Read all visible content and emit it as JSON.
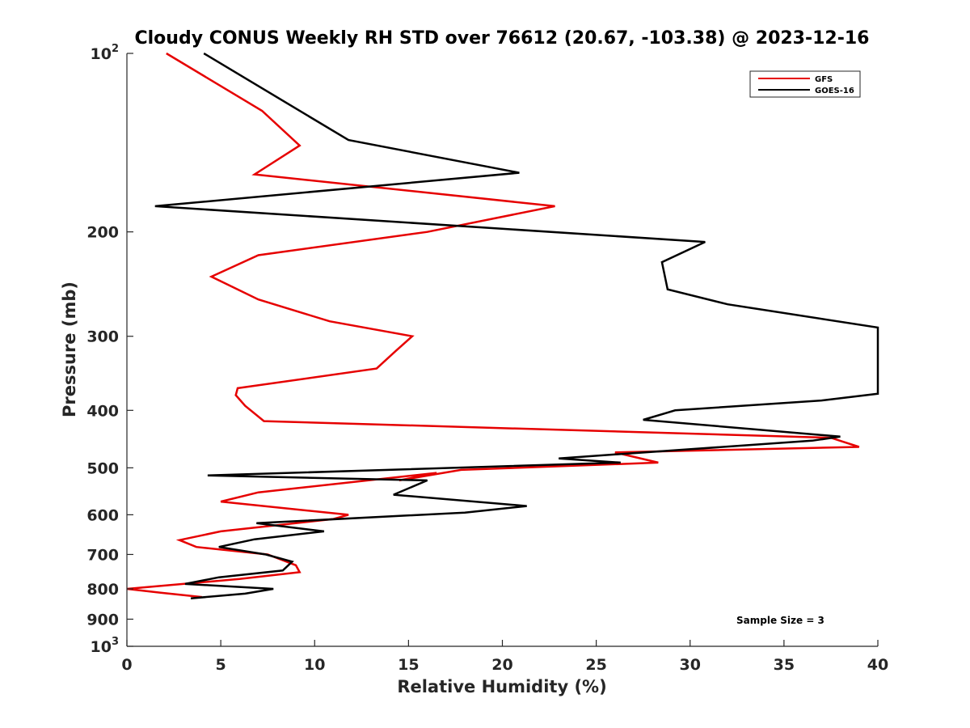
{
  "chart_data": {
    "type": "line",
    "title": "Cloudy CONUS Weekly RH STD over 76612 (20.67, -103.38) @ 2023-12-16",
    "xlabel": "Relative Humidity (%)",
    "ylabel": "Pressure (mb)",
    "xlim": [
      0,
      40
    ],
    "ylim": [
      100,
      1000
    ],
    "y_scale": "log",
    "y_reversed": true,
    "x_ticks": [
      0,
      5,
      10,
      15,
      20,
      25,
      30,
      35,
      40
    ],
    "x_tick_labels": [
      "0",
      "5",
      "10",
      "15",
      "20",
      "25",
      "30",
      "35",
      "40"
    ],
    "y_ticks": [
      {
        "value": 100,
        "base": "10",
        "exp": "2"
      },
      {
        "value": 200,
        "label": "200"
      },
      {
        "value": 300,
        "label": "300"
      },
      {
        "value": 400,
        "label": "400"
      },
      {
        "value": 500,
        "label": "500"
      },
      {
        "value": 600,
        "label": "600"
      },
      {
        "value": 700,
        "label": "700"
      },
      {
        "value": 800,
        "label": "800"
      },
      {
        "value": 900,
        "label": "900"
      },
      {
        "value": 1000,
        "base": "10",
        "exp": "3"
      }
    ],
    "legend": {
      "placement": "top-right"
    },
    "annotation": "Sample Size = 3",
    "series": [
      {
        "name": "GFS",
        "color": "#e60000",
        "points": [
          [
            2.1,
            100
          ],
          [
            7.2,
            125
          ],
          [
            9.2,
            143
          ],
          [
            6.8,
            160
          ],
          [
            22.8,
            181
          ],
          [
            16.0,
            200
          ],
          [
            7.0,
            219
          ],
          [
            4.5,
            238
          ],
          [
            7.0,
            260
          ],
          [
            10.8,
            283
          ],
          [
            15.2,
            300
          ],
          [
            14.3,
            318
          ],
          [
            13.3,
            340
          ],
          [
            5.9,
            367
          ],
          [
            5.8,
            377
          ],
          [
            6.3,
            393
          ],
          [
            7.3,
            417
          ],
          [
            37.5,
            445
          ],
          [
            39.0,
            461
          ],
          [
            26.0,
            471
          ],
          [
            28.3,
            490
          ],
          [
            17.8,
            504
          ],
          [
            14.5,
            525
          ],
          [
            16.5,
            510
          ],
          [
            7.0,
            550
          ],
          [
            5.0,
            570
          ],
          [
            11.8,
            600
          ],
          [
            11.0,
            610
          ],
          [
            5.0,
            640
          ],
          [
            2.8,
            662
          ],
          [
            3.7,
            680
          ],
          [
            7.5,
            700
          ],
          [
            9.0,
            730
          ],
          [
            9.2,
            750
          ],
          [
            6.0,
            770
          ],
          [
            0.0,
            800
          ],
          [
            1.8,
            812
          ],
          [
            4.0,
            826
          ]
        ]
      },
      {
        "name": "GOES-16",
        "color": "#000000",
        "points": [
          [
            4.1,
            100
          ],
          [
            11.8,
            140
          ],
          [
            20.9,
            159
          ],
          [
            1.5,
            181
          ],
          [
            30.8,
            208
          ],
          [
            28.5,
            225
          ],
          [
            28.8,
            250
          ],
          [
            32.0,
            265
          ],
          [
            40.0,
            290
          ],
          [
            40.0,
            375
          ],
          [
            37.0,
            385
          ],
          [
            29.2,
            400
          ],
          [
            27.5,
            415
          ],
          [
            38.0,
            443
          ],
          [
            36.5,
            450
          ],
          [
            23.0,
            482
          ],
          [
            26.3,
            490
          ],
          [
            4.3,
            515
          ],
          [
            16.0,
            525
          ],
          [
            14.2,
            555
          ],
          [
            21.3,
            580
          ],
          [
            18.0,
            595
          ],
          [
            6.9,
            620
          ],
          [
            10.5,
            640
          ],
          [
            6.8,
            660
          ],
          [
            4.9,
            680
          ],
          [
            7.4,
            700
          ],
          [
            8.8,
            720
          ],
          [
            8.3,
            745
          ],
          [
            4.9,
            765
          ],
          [
            3.1,
            785
          ],
          [
            7.8,
            800
          ],
          [
            6.3,
            815
          ],
          [
            3.4,
            830
          ]
        ]
      }
    ]
  }
}
